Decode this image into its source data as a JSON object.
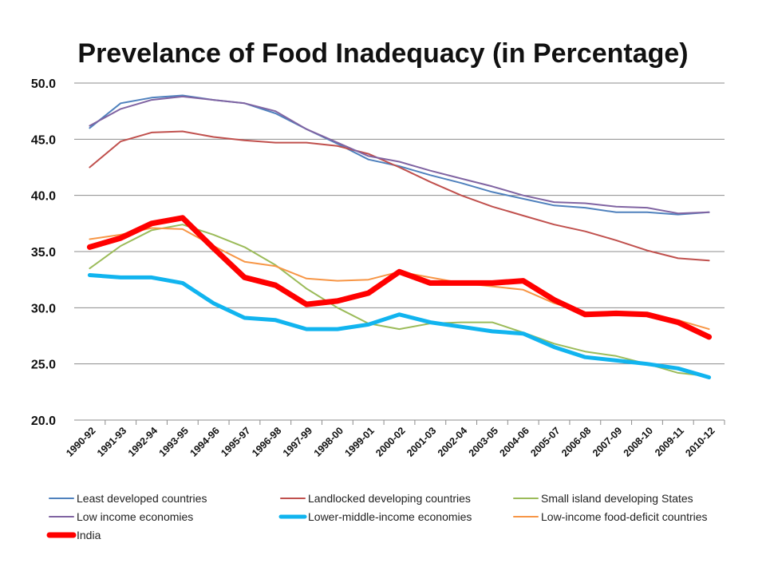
{
  "chart_data": {
    "type": "line",
    "title": "Prevelance of Food  Inadequacy (in Percentage)",
    "xlabel": "",
    "ylabel": "",
    "ylim": [
      20,
      50
    ],
    "yticks": [
      "20.0",
      "25.0",
      "30.0",
      "35.0",
      "40.0",
      "45.0",
      "50.0"
    ],
    "grid": true,
    "legend_position": "bottom",
    "categories": [
      "1990-92",
      "1991-93",
      "1992-94",
      "1993-95",
      "1994-96",
      "1995-97",
      "1996-98",
      "1997-99",
      "1998-00",
      "1999-01",
      "2000-02",
      "2001-03",
      "2002-04",
      "2003-05",
      "2004-06",
      "2005-07",
      "2006-08",
      "2007-09",
      "2008-10",
      "2009-11",
      "2010-12"
    ],
    "series": [
      {
        "name": "Least developed countries",
        "color": "#4f81bd",
        "values": [
          46.0,
          48.2,
          48.7,
          48.9,
          48.5,
          48.2,
          47.3,
          45.9,
          44.6,
          43.2,
          42.6,
          41.8,
          41.1,
          40.3,
          39.7,
          39.1,
          38.9,
          38.5,
          38.5,
          38.3,
          38.5
        ]
      },
      {
        "name": "Landlocked developing countries",
        "color": "#c0504d",
        "values": [
          42.5,
          44.8,
          45.6,
          45.7,
          45.2,
          44.9,
          44.7,
          44.7,
          44.4,
          43.7,
          42.5,
          41.2,
          40.0,
          39.0,
          38.2,
          37.4,
          36.8,
          36.0,
          35.1,
          34.4,
          34.2
        ]
      },
      {
        "name": "Small island developing States",
        "color": "#9bbb59",
        "values": [
          33.5,
          35.5,
          36.9,
          37.4,
          36.5,
          35.4,
          33.8,
          31.7,
          30.0,
          28.6,
          28.1,
          28.6,
          28.7,
          28.7,
          27.8,
          26.8,
          26.1,
          25.7,
          25.0,
          24.2,
          23.9
        ]
      },
      {
        "name": "Low income economies",
        "color": "#8064a2",
        "values": [
          46.2,
          47.7,
          48.5,
          48.8,
          48.5,
          48.2,
          47.5,
          45.9,
          44.7,
          43.5,
          43.0,
          42.2,
          41.5,
          40.8,
          40.0,
          39.4,
          39.3,
          39.0,
          38.9,
          38.4,
          38.5
        ]
      },
      {
        "name": "Lower-middle-income economies",
        "color": "#11b4ef",
        "values": [
          32.9,
          32.7,
          32.7,
          32.2,
          30.4,
          29.1,
          28.9,
          28.1,
          28.1,
          28.5,
          29.4,
          28.7,
          28.3,
          27.9,
          27.7,
          26.5,
          25.6,
          25.3,
          25.0,
          24.6,
          23.8
        ]
      },
      {
        "name": "Low-income food-deficit countries",
        "color": "#f79646",
        "values": [
          36.1,
          36.5,
          37.1,
          37.0,
          35.5,
          34.1,
          33.7,
          32.6,
          32.4,
          32.5,
          33.2,
          32.7,
          32.2,
          31.9,
          31.6,
          30.4,
          29.6,
          29.5,
          29.5,
          28.9,
          28.1
        ]
      },
      {
        "name": "India",
        "color": "#ff0000",
        "values": [
          35.4,
          36.2,
          37.5,
          38.0,
          35.3,
          32.7,
          32.0,
          30.3,
          30.6,
          31.3,
          33.2,
          32.2,
          32.2,
          32.2,
          32.4,
          30.7,
          29.4,
          29.5,
          29.4,
          28.7,
          27.4
        ]
      }
    ]
  }
}
